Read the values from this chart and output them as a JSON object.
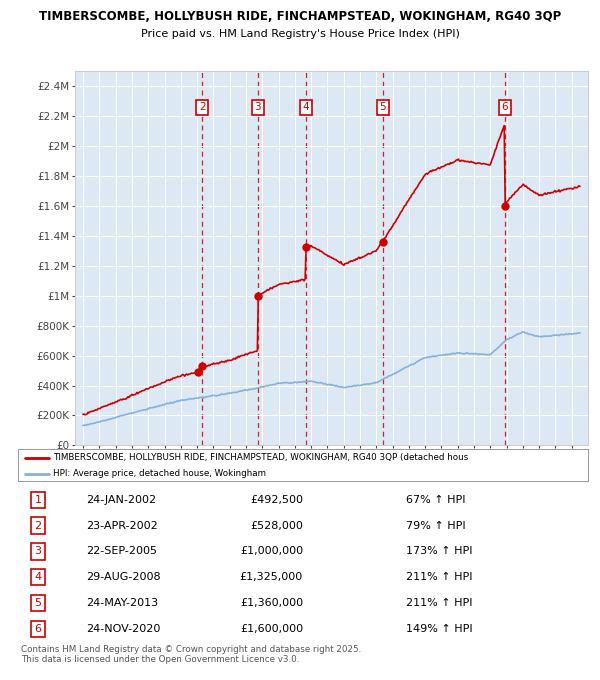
{
  "title_line1": "TIMBERSCOMBE, HOLLYBUSH RIDE, FINCHAMPSTEAD, WOKINGHAM, RG40 3QP",
  "title_line2": "Price paid vs. HM Land Registry's House Price Index (HPI)",
  "background_color": "#dce9f5",
  "plot_bg_color": "#dce9f5",
  "legend_line1": "TIMBERSCOMBE, HOLLYBUSH RIDE, FINCHAMPSTEAD, WOKINGHAM, RG40 3QP (detached hous",
  "legend_line2": "HPI: Average price, detached house, Wokingham",
  "footer": "Contains HM Land Registry data © Crown copyright and database right 2025.\nThis data is licensed under the Open Government Licence v3.0.",
  "yticks": [
    0,
    200000,
    400000,
    600000,
    800000,
    1000000,
    1200000,
    1400000,
    1600000,
    1800000,
    2000000,
    2200000,
    2400000
  ],
  "ytick_labels": [
    "£0",
    "£200K",
    "£400K",
    "£600K",
    "£800K",
    "£1M",
    "£1.2M",
    "£1.4M",
    "£1.6M",
    "£1.8M",
    "£2M",
    "£2.2M",
    "£2.4M"
  ],
  "sale_color": "#cc0000",
  "hpi_color": "#88b0d8",
  "marker_box_color": "#cc0000",
  "dashed_line_color": "#cc0000",
  "transactions": [
    {
      "num": 1,
      "date": "24-JAN-2002",
      "price": 492500,
      "price_str": "£492,500",
      "pct": "67%",
      "dir": "↑",
      "label": "1"
    },
    {
      "num": 2,
      "date": "23-APR-2002",
      "price": 528000,
      "price_str": "£528,000",
      "pct": "79%",
      "dir": "↑",
      "label": "2"
    },
    {
      "num": 3,
      "date": "22-SEP-2005",
      "price": 1000000,
      "price_str": "£1,000,000",
      "pct": "173%",
      "dir": "↑",
      "label": "3"
    },
    {
      "num": 4,
      "date": "29-AUG-2008",
      "price": 1325000,
      "price_str": "£1,325,000",
      "pct": "211%",
      "dir": "↑",
      "label": "4"
    },
    {
      "num": 5,
      "date": "24-MAY-2013",
      "price": 1360000,
      "price_str": "£1,360,000",
      "pct": "211%",
      "dir": "↑",
      "label": "5"
    },
    {
      "num": 6,
      "date": "24-NOV-2020",
      "price": 1600000,
      "price_str": "£1,600,000",
      "pct": "149%",
      "dir": "↑",
      "label": "6"
    }
  ],
  "transaction_x": [
    2002.07,
    2002.31,
    2005.73,
    2008.66,
    2013.39,
    2020.9
  ],
  "xlim": [
    1994.5,
    2026.0
  ],
  "ylim": [
    0,
    2500000
  ],
  "xticks": [
    1995,
    1996,
    1997,
    1998,
    1999,
    2000,
    2001,
    2002,
    2003,
    2004,
    2005,
    2006,
    2007,
    2008,
    2009,
    2010,
    2011,
    2012,
    2013,
    2014,
    2015,
    2016,
    2017,
    2018,
    2019,
    2020,
    2021,
    2022,
    2023,
    2024,
    2025
  ]
}
